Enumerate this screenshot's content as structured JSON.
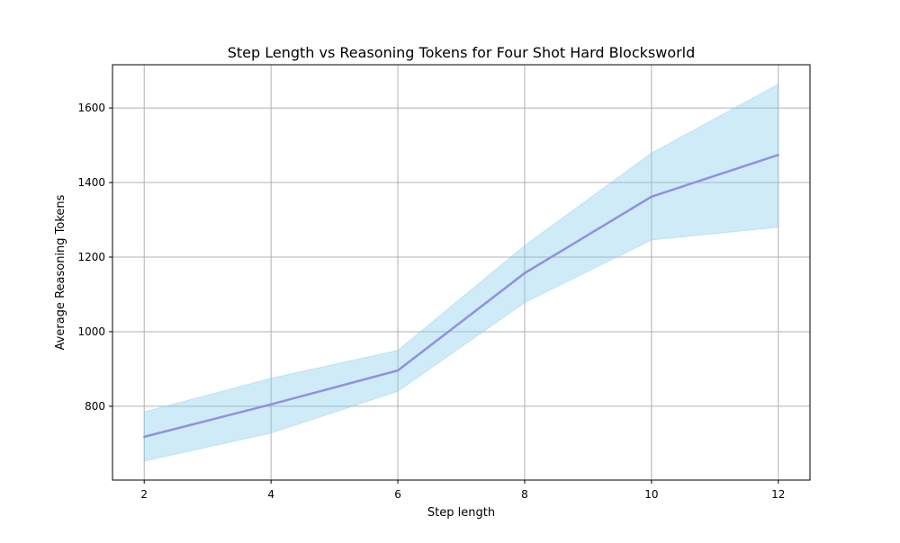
{
  "chart_data": {
    "type": "line",
    "title": "Step Length vs Reasoning Tokens for Four Shot Hard Blocksworld",
    "xlabel": "Step length",
    "ylabel": "Average Reasoning Tokens",
    "x": [
      2,
      4,
      6,
      8,
      10,
      12
    ],
    "series": [
      {
        "name": "Average Reasoning Tokens",
        "values": [
          718,
          805,
          896,
          1157,
          1362,
          1474
        ],
        "upper": [
          785,
          875,
          950,
          1231,
          1479,
          1664
        ],
        "lower": [
          653,
          728,
          840,
          1078,
          1246,
          1280
        ],
        "color": "#9090e0",
        "band_color": "#87ceeb"
      }
    ],
    "xlim": [
      1.5,
      12.5
    ],
    "ylim": [
      602,
      1716
    ],
    "xticks": [
      "2",
      "4",
      "6",
      "8",
      "10",
      "12"
    ],
    "yticks": [
      "800",
      "1000",
      "1200",
      "1400",
      "1600"
    ],
    "grid": true
  }
}
